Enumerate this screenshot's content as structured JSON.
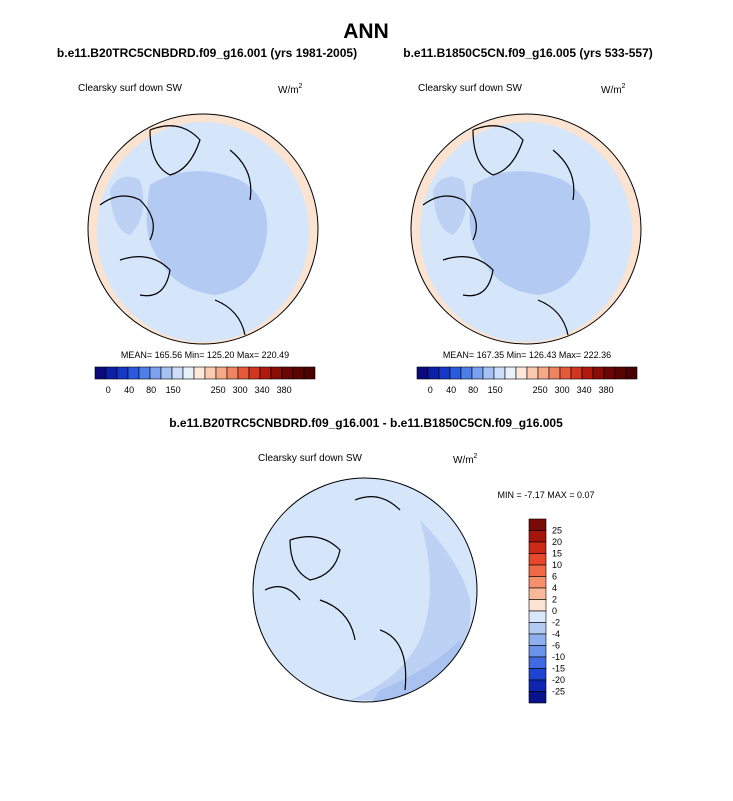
{
  "title": "ANN",
  "panels": [
    {
      "title": "b.e11.B20TRC5CNBDRD.f09_g16.001 (yrs 1981-2005)",
      "variable": "Clearsky surf down SW",
      "units": "W/m",
      "units_exp": "2",
      "stats": "MEAN= 165.56  Min= 125.20  Max= 220.49",
      "colorbar_labels": [
        "0",
        "40",
        "80",
        "150",
        "250",
        "300",
        "340",
        "380"
      ]
    },
    {
      "title": "b.e11.B1850C5CN.f09_g16.005 (yrs 533-557)",
      "variable": "Clearsky surf down SW",
      "units": "W/m",
      "units_exp": "2",
      "stats": "MEAN= 167.35  Min= 126.43  Max= 222.36",
      "colorbar_labels": [
        "0",
        "40",
        "80",
        "150",
        "250",
        "300",
        "340",
        "380"
      ]
    },
    {
      "title": "b.e11.B20TRC5CNBDRD.f09_g16.001 - b.e11.B1850C5CN.f09_g16.005",
      "variable": "Clearsky surf down SW",
      "units": "W/m",
      "units_exp": "2",
      "stats": "MIN =  -7.17 MAX =   0.07",
      "colorbar_labels": [
        "25",
        "20",
        "15",
        "10",
        "6",
        "4",
        "2",
        "0",
        "-2",
        "-4",
        "-6",
        "-10",
        "-15",
        "-20",
        "-25"
      ]
    }
  ]
}
